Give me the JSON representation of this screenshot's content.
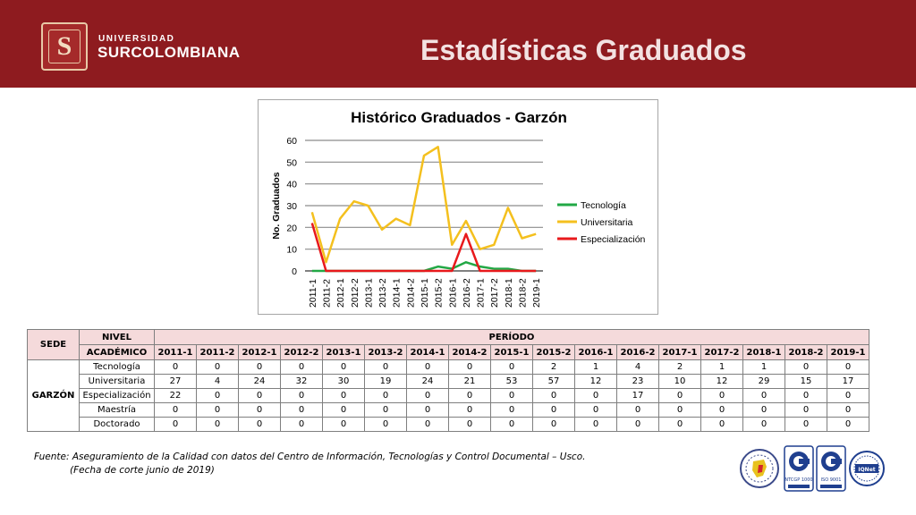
{
  "header": {
    "university_small": "UNIVERSIDAD",
    "university_big": "SURCOLOMBIANA",
    "logo_letter": "S",
    "title": "Estadísticas Graduados",
    "color": "#8e1b1f"
  },
  "chart_data": {
    "type": "line",
    "title": "Histórico Graduados - Garzón",
    "xlabel": "",
    "ylabel": "No. Graduados",
    "ylim": [
      0,
      60
    ],
    "yticks": [
      "0",
      "10",
      "20",
      "30",
      "40",
      "50",
      "60"
    ],
    "grid": true,
    "legend_position": "right",
    "categories": [
      "2011-1",
      "2011-2",
      "2012-1",
      "2012-2",
      "2013-1",
      "2013-2",
      "2014-1",
      "2014-2",
      "2015-1",
      "2015-2",
      "2016-1",
      "2016-2",
      "2017-1",
      "2017-2",
      "2018-1",
      "2018-2",
      "2019-1"
    ],
    "series": [
      {
        "name": "Tecnología",
        "color": "#22a845",
        "values": [
          0,
          0,
          0,
          0,
          0,
          0,
          0,
          0,
          0,
          2,
          1,
          4,
          2,
          1,
          1,
          0,
          0
        ]
      },
      {
        "name": "Universitaria",
        "color": "#f4c01e",
        "values": [
          27,
          4,
          24,
          32,
          30,
          19,
          24,
          21,
          53,
          57,
          12,
          23,
          10,
          12,
          29,
          15,
          17
        ]
      },
      {
        "name": "Especialización",
        "color": "#e8191c",
        "values": [
          22,
          0,
          0,
          0,
          0,
          0,
          0,
          0,
          0,
          0,
          0,
          17,
          0,
          0,
          0,
          0,
          0
        ]
      }
    ]
  },
  "table": {
    "sede_header": "SEDE",
    "nivel_header_1": "NIVEL",
    "nivel_header_2": "ACADÉMICO",
    "periodo_header": "PERÍODO",
    "sede": "GARZÓN",
    "periods": [
      "2011-1",
      "2011-2",
      "2012-1",
      "2012-2",
      "2013-1",
      "2013-2",
      "2014-1",
      "2014-2",
      "2015-1",
      "2015-2",
      "2016-1",
      "2016-2",
      "2017-1",
      "2017-2",
      "2018-1",
      "2018-2",
      "2019-1"
    ],
    "rows": [
      {
        "level": "Tecnología",
        "values": [
          "0",
          "0",
          "0",
          "0",
          "0",
          "0",
          "0",
          "0",
          "0",
          "2",
          "1",
          "4",
          "2",
          "1",
          "1",
          "0",
          "0"
        ]
      },
      {
        "level": "Universitaria",
        "values": [
          "27",
          "4",
          "24",
          "32",
          "30",
          "19",
          "24",
          "21",
          "53",
          "57",
          "12",
          "23",
          "10",
          "12",
          "29",
          "15",
          "17"
        ]
      },
      {
        "level": "Especialización",
        "values": [
          "22",
          "0",
          "0",
          "0",
          "0",
          "0",
          "0",
          "0",
          "0",
          "0",
          "0",
          "17",
          "0",
          "0",
          "0",
          "0",
          "0"
        ]
      },
      {
        "level": "Maestría",
        "values": [
          "0",
          "0",
          "0",
          "0",
          "0",
          "0",
          "0",
          "0",
          "0",
          "0",
          "0",
          "0",
          "0",
          "0",
          "0",
          "0",
          "0"
        ]
      },
      {
        "level": "Doctorado",
        "values": [
          "0",
          "0",
          "0",
          "0",
          "0",
          "0",
          "0",
          "0",
          "0",
          "0",
          "0",
          "0",
          "0",
          "0",
          "0",
          "0",
          "0"
        ]
      }
    ],
    "header_color": "#f5dadb"
  },
  "source": {
    "line1": "Fuente: Aseguramiento de la Calidad con datos del Centro de Información, Tecnologías y Control Documental – Usco.",
    "line2": "(Fecha de corte junio de 2019)"
  },
  "certifications": {
    "icons": [
      "colombia-seal-icon",
      "icontec-iso-9001-icon",
      "icontec-ntcgp-1000-icon",
      "iqnet-icon"
    ],
    "labels": [
      "NTCGP 1000",
      "ISO 9001",
      "IQNet"
    ]
  }
}
